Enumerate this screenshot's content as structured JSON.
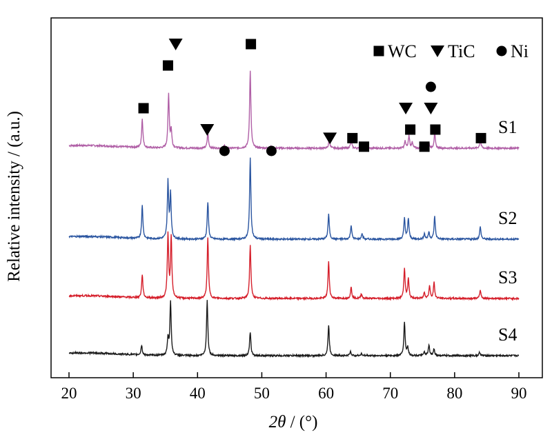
{
  "chart_data": {
    "type": "line",
    "xlabel_italic": "2θ",
    "xlabel_unit": " / (°)",
    "ylabel": "Relative intensity / (a.u.)",
    "xlim": [
      20,
      90
    ],
    "xticks": [
      "20",
      "30",
      "40",
      "50",
      "60",
      "70",
      "80",
      "90"
    ],
    "legend": [
      {
        "symbol": "square",
        "label": "WC"
      },
      {
        "symbol": "triangle",
        "label": "TiC"
      },
      {
        "symbol": "circle",
        "label": "Ni"
      }
    ],
    "series": [
      {
        "name": "S1",
        "color": "#b05fa6",
        "peaks": [
          [
            31.4,
            42
          ],
          [
            35.5,
            78
          ],
          [
            35.9,
            25
          ],
          [
            41.6,
            22
          ],
          [
            44.2,
            4
          ],
          [
            48.2,
            112
          ],
          [
            51.5,
            2
          ],
          [
            60.5,
            13
          ],
          [
            63.9,
            12
          ],
          [
            65.6,
            4
          ],
          [
            72.3,
            10
          ],
          [
            72.9,
            18
          ],
          [
            73.4,
            8
          ],
          [
            75.3,
            5
          ],
          [
            76.0,
            7
          ],
          [
            76.9,
            22
          ],
          [
            84.0,
            12
          ]
        ]
      },
      {
        "name": "S2",
        "color": "#2a55a0",
        "peaks": [
          [
            31.4,
            48
          ],
          [
            35.4,
            82
          ],
          [
            35.8,
            65
          ],
          [
            41.6,
            54
          ],
          [
            48.2,
            118
          ],
          [
            60.4,
            36
          ],
          [
            63.9,
            20
          ],
          [
            65.6,
            8
          ],
          [
            72.2,
            30
          ],
          [
            72.8,
            30
          ],
          [
            75.3,
            8
          ],
          [
            76.0,
            10
          ],
          [
            76.9,
            33
          ],
          [
            84.0,
            18
          ]
        ]
      },
      {
        "name": "S3",
        "color": "#d51e2a",
        "peaks": [
          [
            31.4,
            34
          ],
          [
            35.4,
            92
          ],
          [
            35.9,
            88
          ],
          [
            41.6,
            88
          ],
          [
            48.2,
            78
          ],
          [
            60.4,
            53
          ],
          [
            63.9,
            16
          ],
          [
            65.5,
            7
          ],
          [
            72.2,
            44
          ],
          [
            72.8,
            28
          ],
          [
            75.3,
            9
          ],
          [
            76.1,
            18
          ],
          [
            76.8,
            23
          ],
          [
            84.0,
            12
          ]
        ]
      },
      {
        "name": "S4",
        "color": "#1a1a1a",
        "peaks": [
          [
            31.3,
            14
          ],
          [
            35.4,
            25
          ],
          [
            35.8,
            78
          ],
          [
            41.5,
            80
          ],
          [
            48.2,
            34
          ],
          [
            60.4,
            44
          ],
          [
            63.8,
            6
          ],
          [
            65.5,
            3
          ],
          [
            72.2,
            48
          ],
          [
            72.7,
            12
          ],
          [
            75.3,
            5
          ],
          [
            76.0,
            15
          ],
          [
            76.8,
            10
          ],
          [
            83.9,
            5
          ]
        ]
      }
    ],
    "phase_markers": [
      {
        "series": "S1",
        "symbol": "square",
        "x": 31.6,
        "level": 1
      },
      {
        "series": "S1",
        "symbol": "square",
        "x": 35.4,
        "level": 3
      },
      {
        "series": "S1",
        "symbol": "triangle",
        "x": 36.6,
        "level": 4
      },
      {
        "series": "S1",
        "symbol": "triangle",
        "x": 41.5,
        "level": 0
      },
      {
        "series": "S1",
        "symbol": "circle",
        "x": 44.2,
        "level": -1
      },
      {
        "series": "S1",
        "symbol": "square",
        "x": 48.3,
        "level": 4
      },
      {
        "series": "S1",
        "symbol": "circle",
        "x": 51.5,
        "level": -1
      },
      {
        "series": "S1",
        "symbol": "triangle",
        "x": 60.6,
        "level": -0.4
      },
      {
        "series": "S1",
        "symbol": "square",
        "x": 64.1,
        "level": -0.4
      },
      {
        "series": "S1",
        "symbol": "square",
        "x": 65.9,
        "level": -0.8
      },
      {
        "series": "S1",
        "symbol": "triangle",
        "x": 72.4,
        "level": 1
      },
      {
        "series": "S1",
        "symbol": "square",
        "x": 73.1,
        "level": 0
      },
      {
        "series": "S1",
        "symbol": "square",
        "x": 75.3,
        "level": -0.8
      },
      {
        "series": "S1",
        "symbol": "circle",
        "x": 76.3,
        "level": 2
      },
      {
        "series": "S1",
        "symbol": "triangle",
        "x": 76.3,
        "level": 1
      },
      {
        "series": "S1",
        "symbol": "square",
        "x": 77.0,
        "level": 0
      },
      {
        "series": "S1",
        "symbol": "square",
        "x": 84.1,
        "level": -0.4
      }
    ]
  }
}
